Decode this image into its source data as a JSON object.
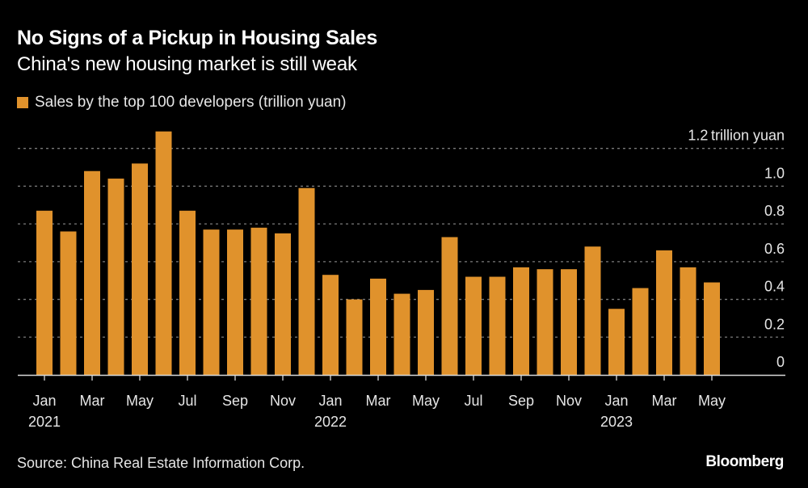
{
  "header": {
    "title": "No Signs of a Pickup in Housing Sales",
    "subtitle": "China's new housing market is still weak"
  },
  "footer": {
    "source": "Source: China Real Estate Information Corp.",
    "brand": "Bloomberg"
  },
  "colors": {
    "bar": "#e0922c",
    "background": "#000000",
    "grid": "#7a7a7a",
    "axis": "#d9d9d9"
  },
  "chart_data": {
    "type": "bar",
    "title": "No Signs of a Pickup in Housing Sales",
    "subtitle": "China's new housing market is still weak",
    "xlabel": "",
    "ylabel": "trillion yuan",
    "ylim": [
      0,
      1.2
    ],
    "yticks": [
      0,
      0.2,
      0.4,
      0.6,
      0.8,
      1.0,
      1.2
    ],
    "ytick_labels": [
      "0",
      "0.2",
      "0.4",
      "0.6",
      "0.8",
      "1.0",
      "1.2"
    ],
    "ytop_unit_label": "trillion yuan",
    "grid": true,
    "legend_position": "top-left",
    "y_axis_side": "right",
    "categories": [
      "Jan 2021",
      "Feb 2021",
      "Mar 2021",
      "Apr 2021",
      "May 2021",
      "Jun 2021",
      "Jul 2021",
      "Aug 2021",
      "Sep 2021",
      "Oct 2021",
      "Nov 2021",
      "Dec 2021",
      "Jan 2022",
      "Feb 2022",
      "Mar 2022",
      "Apr 2022",
      "May 2022",
      "Jun 2022",
      "Jul 2022",
      "Aug 2022",
      "Sep 2022",
      "Oct 2022",
      "Nov 2022",
      "Dec 2022",
      "Jan 2023",
      "Feb 2023",
      "Mar 2023",
      "Apr 2023",
      "May 2023"
    ],
    "xtick_labels": [
      {
        "index": 0,
        "month": "Jan",
        "year": "2021"
      },
      {
        "index": 2,
        "month": "Mar",
        "year": ""
      },
      {
        "index": 4,
        "month": "May",
        "year": ""
      },
      {
        "index": 6,
        "month": "Jul",
        "year": ""
      },
      {
        "index": 8,
        "month": "Sep",
        "year": ""
      },
      {
        "index": 10,
        "month": "Nov",
        "year": ""
      },
      {
        "index": 12,
        "month": "Jan",
        "year": "2022"
      },
      {
        "index": 14,
        "month": "Mar",
        "year": ""
      },
      {
        "index": 16,
        "month": "May",
        "year": ""
      },
      {
        "index": 18,
        "month": "Jul",
        "year": ""
      },
      {
        "index": 20,
        "month": "Sep",
        "year": ""
      },
      {
        "index": 22,
        "month": "Nov",
        "year": ""
      },
      {
        "index": 24,
        "month": "Jan",
        "year": "2023"
      },
      {
        "index": 26,
        "month": "Mar",
        "year": ""
      },
      {
        "index": 28,
        "month": "May",
        "year": ""
      }
    ],
    "series": [
      {
        "name": "Sales by the top 100 developers (trillion yuan)",
        "color": "#e0922c",
        "values": [
          0.87,
          0.76,
          1.08,
          1.04,
          1.12,
          1.29,
          0.87,
          0.77,
          0.77,
          0.78,
          0.75,
          0.99,
          0.53,
          0.4,
          0.51,
          0.43,
          0.45,
          0.73,
          0.52,
          0.52,
          0.57,
          0.56,
          0.56,
          0.68,
          0.35,
          0.46,
          0.66,
          0.57,
          0.49
        ]
      }
    ]
  }
}
